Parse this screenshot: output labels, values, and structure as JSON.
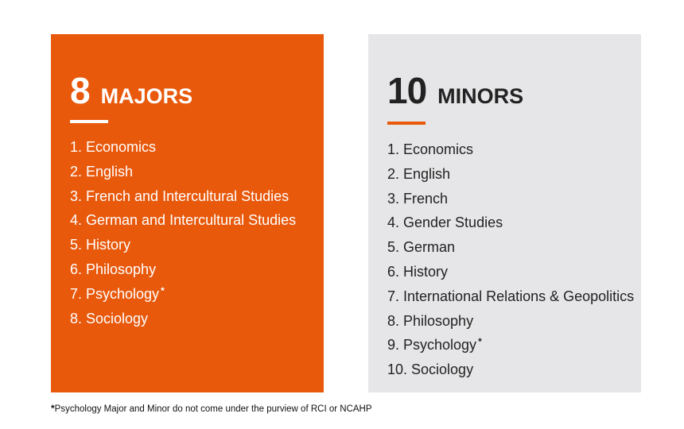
{
  "colors": {
    "accent": "#E8590C",
    "panel": "#E6E6E8"
  },
  "majors": {
    "count": "8",
    "label": "MAJORS",
    "items": [
      {
        "text": "1.  Economics"
      },
      {
        "text": "2. English"
      },
      {
        "text": "3. French and Intercultural Studies"
      },
      {
        "text": "4. German and Intercultural Studies"
      },
      {
        "text": "5. History"
      },
      {
        "text": "6. Philosophy"
      },
      {
        "text": "7. Psychology",
        "mark": "*"
      },
      {
        "text": "8. Sociology"
      }
    ]
  },
  "minors": {
    "count": "10",
    "label": "MINORS",
    "items": [
      {
        "text": "1.  Economics"
      },
      {
        "text": "2. English"
      },
      {
        "text": "3. French"
      },
      {
        "text": "4. Gender Studies"
      },
      {
        "text": "5. German"
      },
      {
        "text": "6. History"
      },
      {
        "text": "7. International Relations & Geopolitics"
      },
      {
        "text": "8. Philosophy"
      },
      {
        "text": "9. Psychology",
        "mark": "*"
      },
      {
        "text": "10. Sociology"
      }
    ]
  },
  "footnote": {
    "mark": "*",
    "text": "Psychology Major and Minor do not come under the purview of RCI or NCAHP"
  }
}
